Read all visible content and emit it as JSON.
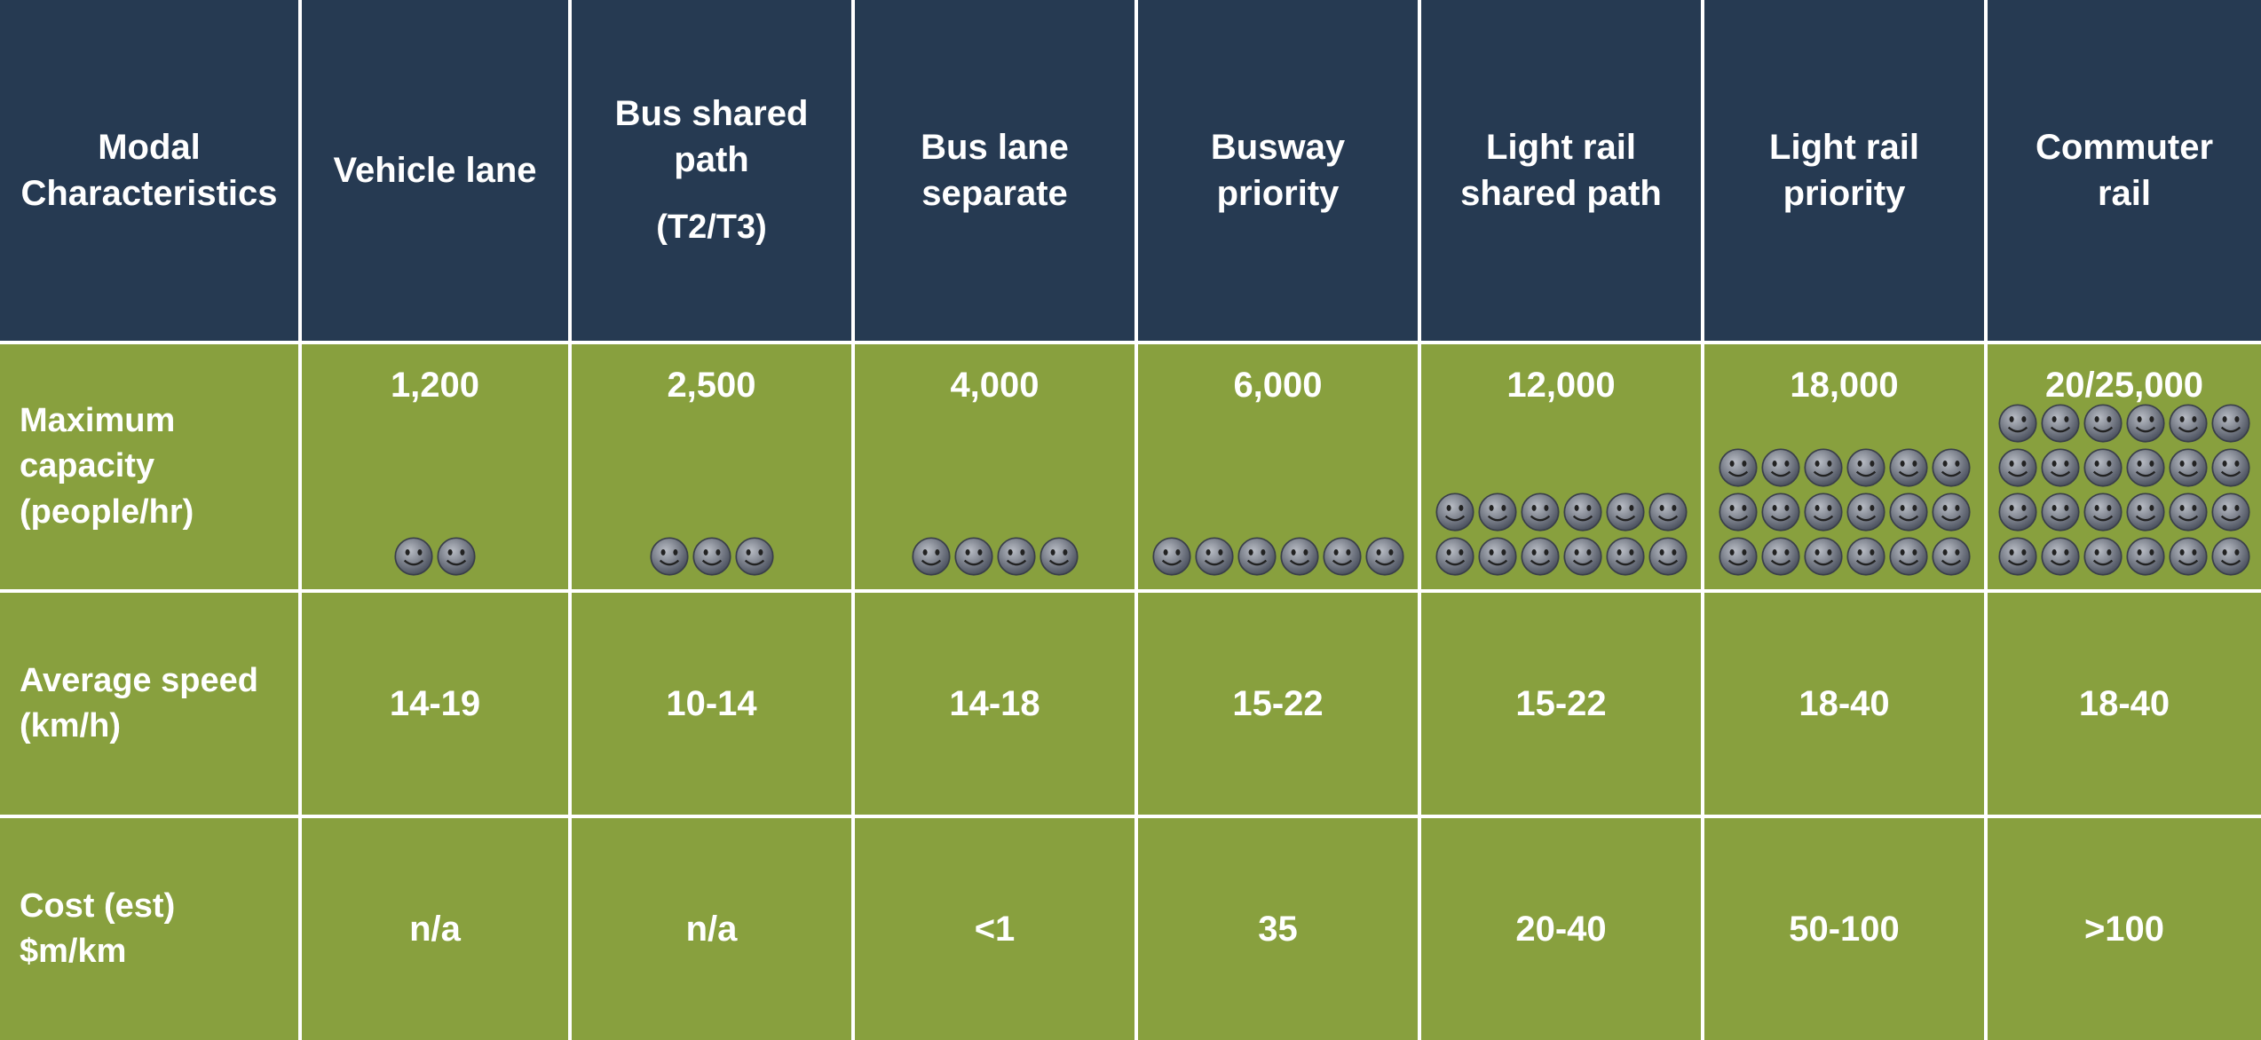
{
  "table": {
    "header": {
      "corner": "Modal Characteristics",
      "columns": [
        {
          "name": "Vehicle lane"
        },
        {
          "name": "Bus shared path",
          "note": "(T2/T3)"
        },
        {
          "name": "Bus lane separate"
        },
        {
          "name": "Busway priority"
        },
        {
          "name": "Light rail shared path"
        },
        {
          "name": "Light rail priority"
        },
        {
          "name": "Commuter rail"
        }
      ]
    },
    "rows": [
      {
        "label": "Maximum capacity (people/hr)",
        "cells": [
          "1,200",
          "2,500",
          "4,000",
          "6,000",
          "12,000",
          "18,000",
          "20/25,000"
        ]
      },
      {
        "label": "Average speed (km/h)",
        "cells": [
          "14-19",
          "10-14",
          "14-18",
          "15-22",
          "15-22",
          "18-40",
          "18-40"
        ]
      },
      {
        "label": "Cost (est) $m/km",
        "cells": [
          "n/a",
          "n/a",
          "<1",
          "35",
          "20-40",
          "50-100",
          ">100"
        ]
      }
    ]
  }
}
